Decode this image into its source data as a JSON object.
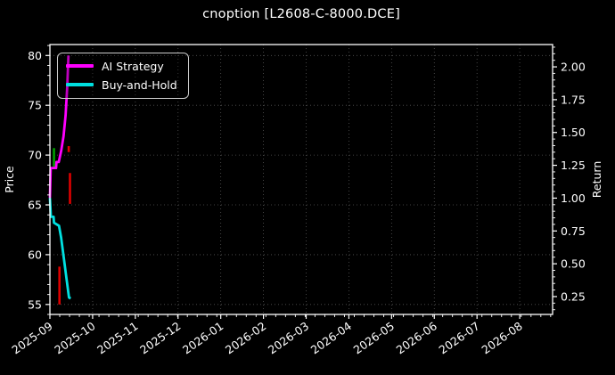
{
  "chart_data": {
    "type": "line",
    "title": "cnoption [L2608-C-8000.DCE]",
    "ylabel_left": "Price",
    "ylabel_right": "Return",
    "background_color": "#000000",
    "text_color": "#ffffff",
    "grid": "dotted",
    "legend_position": "upper left",
    "x_ticklabels": [
      "2025-09",
      "2025-10",
      "2025-11",
      "2025-12",
      "2026-01",
      "2026-02",
      "2026-03",
      "2026-04",
      "2026-05",
      "2026-06",
      "2026-07",
      "2026-08"
    ],
    "y_left_ticks": [
      80,
      75,
      70,
      65,
      60,
      55
    ],
    "y_right_ticks": [
      "2.00",
      "1.75",
      "1.50",
      "1.25",
      "1.00",
      "0.75",
      "0.50",
      "0.25"
    ],
    "ylim_left": [
      54.0,
      81.1
    ],
    "ylim_right": [
      0.114,
      2.17
    ],
    "xlim_months": [
      0,
      11.77
    ],
    "days_per_month": 30.44,
    "series": [
      {
        "name": "AI Strategy",
        "color": "#FF00FF",
        "axis": "left",
        "points_day_price": [
          [
            0,
            65.7
          ],
          [
            0.6,
            68.7
          ],
          [
            4.4,
            68.7
          ],
          [
            4.7,
            69.3
          ],
          [
            6.3,
            69.3
          ],
          [
            8,
            70.4
          ],
          [
            9.7,
            71.9
          ],
          [
            11.2,
            74.0
          ],
          [
            12.3,
            76.8
          ],
          [
            13.2,
            80.0
          ]
        ]
      },
      {
        "name": "Buy-and-Hold",
        "color": "#00E0E0",
        "axis": "left",
        "points_day_price": [
          [
            0,
            65.7
          ],
          [
            0.7,
            63.8
          ],
          [
            2.6,
            63.8
          ],
          [
            2.9,
            63.2
          ],
          [
            6.5,
            62.9
          ],
          [
            8,
            61.7
          ],
          [
            10,
            59.6
          ],
          [
            12,
            57.4
          ],
          [
            13.6,
            55.7
          ],
          [
            14.8,
            55.6
          ]
        ]
      }
    ],
    "signal_bars": [
      {
        "name": "buy-signal-bar",
        "color": "#00A000",
        "day": 2.9,
        "price_from": 68.6,
        "price_to": 70.7
      },
      {
        "name": "sell-signal-bar-lower",
        "color": "#DD0000",
        "day": 6.8,
        "price_from": 55.0,
        "price_to": 58.8
      },
      {
        "name": "sell-signal-bar-upper",
        "color": "#DD0000",
        "day": 14.3,
        "price_from": 65.1,
        "price_to": 68.2
      },
      {
        "name": "sell-signal-dot",
        "color": "#DD0000",
        "day": 13.4,
        "price_from": 70.3,
        "price_to": 70.9
      }
    ]
  }
}
